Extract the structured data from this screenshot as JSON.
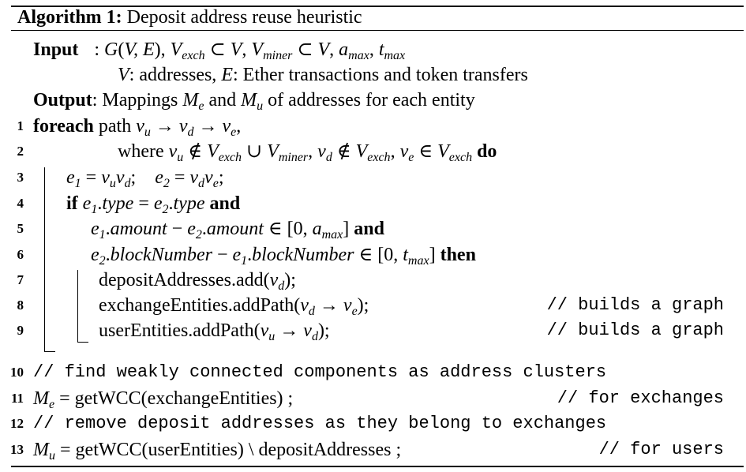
{
  "algorithm": {
    "label": "Algorithm 1:",
    "title": "Deposit address reuse heuristic",
    "input_label": "Input",
    "input_text_1": ": G(V, E), V",
    "input_line_1": ": G(V,E), V_exch ⊂ V, V_miner ⊂ V, a_max, t_max",
    "input_line_2": "V: addresses, E: Ether transactions and token transfers",
    "output_label": "Output",
    "output_text": ": Mappings M_e and M_u of addresses for each entity",
    "lines": [
      {
        "num": "1",
        "text": "foreach path v_u → v_d → v_e,"
      },
      {
        "num": "2",
        "text": "where v_u ∉ V_exch ∪ V_miner, v_d ∉ V_exch, v_e ∈ V_exch do"
      },
      {
        "num": "3",
        "text": "e_1 = v_u v_d;   e_2 = v_d v_e;"
      },
      {
        "num": "4",
        "text": "if e_1.type = e_2.type and"
      },
      {
        "num": "5",
        "text": "e_1.amount − e_2.amount ∈ [0, a_max] and"
      },
      {
        "num": "6",
        "text": "e_2.blockNumber − e_1.blockNumber ∈ [0, t_max] then"
      },
      {
        "num": "7",
        "text": "depositAddresses.add(v_d);"
      },
      {
        "num": "8",
        "text": "exchangeEntities.addPath(v_d → v_e);",
        "comment": "// builds a graph"
      },
      {
        "num": "9",
        "text": "userEntities.addPath(v_u → v_d);",
        "comment": "// builds a graph"
      },
      {
        "num": "10",
        "text": "// find weakly connected components as address clusters"
      },
      {
        "num": "11",
        "text": "M_e = getWCC(exchangeEntities) ;",
        "comment": "// for exchanges"
      },
      {
        "num": "12",
        "text": "// remove deposit addresses as they belong to exchanges"
      },
      {
        "num": "13",
        "text": "M_u = getWCC(userEntities) \\ depositAddresses ;",
        "comment": "// for users"
      }
    ]
  }
}
